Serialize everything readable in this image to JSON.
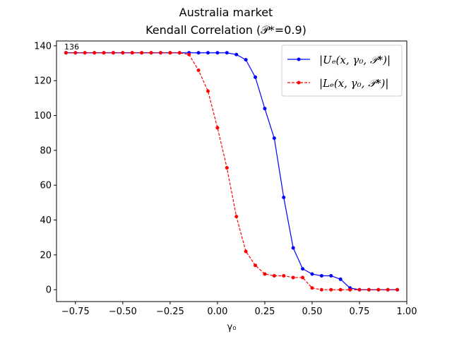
{
  "chart_data": {
    "type": "line",
    "title": "Australia market",
    "subtitle": "Kendall Correlation (𝒫*=0.9)",
    "xlabel": "γ₀",
    "ylabel": "",
    "xlim": [
      -0.85,
      1.0
    ],
    "ylim": [
      -6.8,
      142.8
    ],
    "xticks": [
      -0.75,
      -0.5,
      -0.25,
      0.0,
      0.25,
      0.5,
      0.75,
      1.0
    ],
    "xtick_labels": [
      "−0.75",
      "−0.50",
      "−0.25",
      "0.00",
      "0.25",
      "0.50",
      "0.75",
      "1.00"
    ],
    "yticks": [
      0,
      20,
      40,
      60,
      80,
      100,
      120,
      140
    ],
    "ytick_labels": [
      "0",
      "20",
      "40",
      "60",
      "80",
      "100",
      "120",
      "140"
    ],
    "grid": false,
    "legend_position": "top-right",
    "annotations": [
      {
        "text": "136",
        "x": -0.8,
        "y": 136
      }
    ],
    "x": [
      -0.8,
      -0.75,
      -0.7,
      -0.65,
      -0.6,
      -0.55,
      -0.5,
      -0.45,
      -0.4,
      -0.35,
      -0.3,
      -0.25,
      -0.2,
      -0.15,
      -0.1,
      -0.05,
      0.0,
      0.05,
      0.1,
      0.15,
      0.2,
      0.25,
      0.3,
      0.35,
      0.4,
      0.45,
      0.5,
      0.55,
      0.6,
      0.65,
      0.7,
      0.75,
      0.8,
      0.85,
      0.9,
      0.95
    ],
    "series": [
      {
        "name": "|Uₑ(x, γ₀, 𝒫*)|",
        "color": "#0000ff",
        "linestyle": "solid",
        "values": [
          136,
          136,
          136,
          136,
          136,
          136,
          136,
          136,
          136,
          136,
          136,
          136,
          136,
          136,
          136,
          136,
          136,
          136,
          135,
          132,
          122,
          104,
          87,
          53,
          24,
          12,
          9,
          8,
          8,
          6,
          1,
          0,
          0,
          0,
          0,
          0
        ]
      },
      {
        "name": "|Lₑ(x, γ₀, 𝒫*)|",
        "color": "#ff0000",
        "linestyle": "dashed",
        "values": [
          136,
          136,
          136,
          136,
          136,
          136,
          136,
          136,
          136,
          136,
          136,
          136,
          136,
          135,
          126,
          114,
          93,
          70,
          42,
          22,
          14,
          9,
          8,
          8,
          7,
          7,
          1,
          0,
          0,
          0,
          0,
          0,
          0,
          0,
          0,
          0
        ]
      }
    ]
  }
}
